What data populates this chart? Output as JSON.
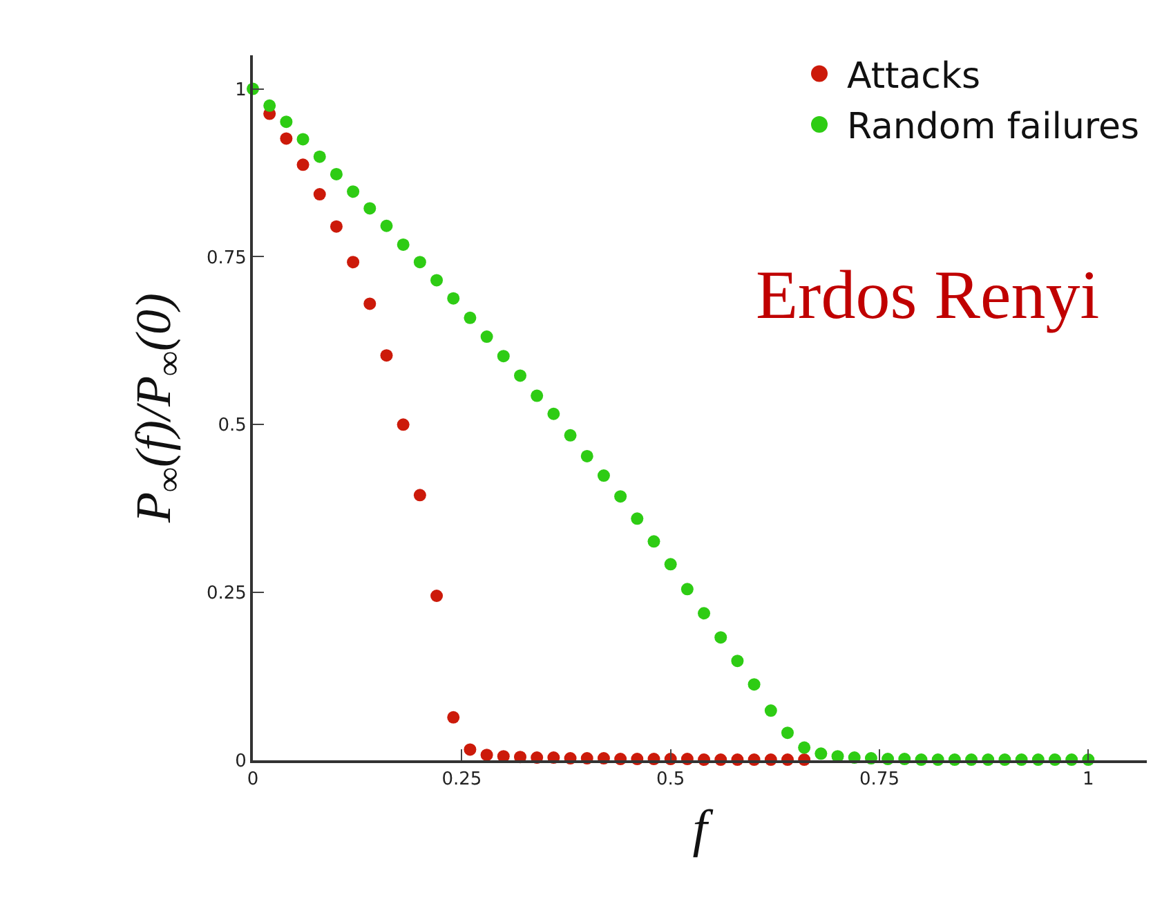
{
  "chart_data": {
    "type": "scatter",
    "xlabel": "f",
    "ylabel": "P$_{∞}$(f)/P$_{∞}$(0)",
    "annotations": [
      "Erdos Renyi"
    ],
    "xlim": [
      0,
      1.07
    ],
    "ylim": [
      0,
      1.05
    ],
    "xticks": [
      0,
      0.25,
      0.5,
      0.75,
      1
    ],
    "yticks": [
      0,
      0.25,
      0.5,
      0.75,
      1
    ],
    "legend": "top right",
    "marker": "circle",
    "series": [
      {
        "name": "Attacks",
        "color": "#cc1a0a",
        "x": [
          0.02,
          0.04,
          0.06,
          0.08,
          0.1,
          0.12,
          0.14,
          0.16,
          0.18,
          0.2,
          0.22,
          0.24,
          0.26,
          0.28,
          0.3,
          0.32,
          0.34,
          0.36,
          0.38,
          0.4,
          0.42,
          0.44,
          0.46,
          0.48,
          0.5,
          0.52,
          0.54,
          0.56,
          0.58,
          0.6,
          0.62,
          0.64,
          0.66
        ],
        "values": [
          0.963,
          0.926,
          0.887,
          0.843,
          0.795,
          0.742,
          0.68,
          0.603,
          0.5,
          0.395,
          0.245,
          0.064,
          0.016,
          0.008,
          0.006,
          0.005,
          0.004,
          0.004,
          0.003,
          0.003,
          0.003,
          0.002,
          0.002,
          0.002,
          0.002,
          0.002,
          0.001,
          0.001,
          0.001,
          0.001,
          0.001,
          0.001,
          0.001
        ]
      },
      {
        "name": "Random failures",
        "color": "#2ecc14",
        "x": [
          0,
          0.02,
          0.04,
          0.06,
          0.08,
          0.1,
          0.12,
          0.14,
          0.16,
          0.18,
          0.2,
          0.22,
          0.24,
          0.26,
          0.28,
          0.3,
          0.32,
          0.34,
          0.36,
          0.38,
          0.4,
          0.42,
          0.44,
          0.46,
          0.48,
          0.5,
          0.52,
          0.54,
          0.56,
          0.58,
          0.6,
          0.62,
          0.64,
          0.66,
          0.68,
          0.7,
          0.72,
          0.74,
          0.76,
          0.78,
          0.8,
          0.82,
          0.84,
          0.86,
          0.88,
          0.9,
          0.92,
          0.94,
          0.96,
          0.98,
          1
        ],
        "values": [
          1,
          0.975,
          0.951,
          0.925,
          0.899,
          0.873,
          0.847,
          0.822,
          0.796,
          0.768,
          0.742,
          0.715,
          0.688,
          0.659,
          0.631,
          0.602,
          0.573,
          0.543,
          0.516,
          0.484,
          0.453,
          0.424,
          0.393,
          0.36,
          0.326,
          0.292,
          0.255,
          0.219,
          0.183,
          0.148,
          0.113,
          0.074,
          0.041,
          0.019,
          0.01,
          0.006,
          0.004,
          0.003,
          0.002,
          0.002,
          0.001,
          0.001,
          0.001,
          0.001,
          0.001,
          0.001,
          0.001,
          0.001,
          0.001,
          0.001,
          0.001
        ]
      }
    ]
  }
}
